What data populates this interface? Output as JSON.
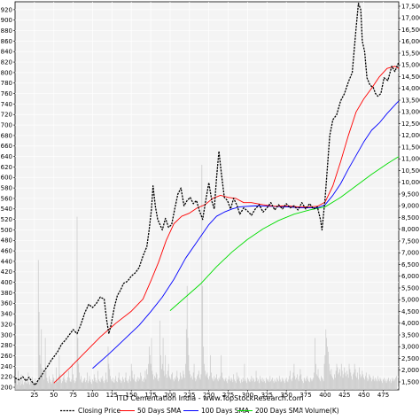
{
  "chart_data": {
    "type": "line",
    "title": "ITD Cementation India - www.TopStockResearch.com",
    "x_ticks": [
      25,
      50,
      75,
      100,
      125,
      150,
      175,
      200,
      225,
      250,
      275,
      300,
      325,
      350,
      375,
      400,
      425,
      450,
      475
    ],
    "x_range": [
      0,
      495
    ],
    "y_left_ticks": [
      200,
      220,
      240,
      260,
      280,
      300,
      320,
      340,
      360,
      380,
      400,
      420,
      440,
      460,
      480,
      500,
      520,
      540,
      560,
      580,
      600,
      620,
      640,
      660,
      680,
      700,
      720,
      740,
      760,
      780,
      800,
      820,
      840,
      860,
      880,
      900,
      920
    ],
    "y_left_range": [
      195,
      935
    ],
    "y_right_ticks": [
      "1,500",
      "2,000",
      "2,500",
      "3,000",
      "3,500",
      "4,000",
      "4,500",
      "5,000",
      "5,500",
      "6,000",
      "6,500",
      "7,000",
      "7,500",
      "8,000",
      "8,500",
      "9,000",
      "9,500",
      "10,000",
      "10,500",
      "11,000",
      "11,500",
      "12,000",
      "12,500",
      "13,000",
      "13,500",
      "14,000",
      "14,500",
      "15,000",
      "15,500",
      "16,000",
      "16,500",
      "17,000",
      "17,500"
    ],
    "grid": true,
    "legend_placement": "bottom",
    "legend": [
      "Closing Price",
      "50 Days SMA",
      "100 Days SMA",
      "200 Days SMA",
      "Volume(K)"
    ],
    "series": [
      {
        "name": "Closing Price",
        "color": "#000000",
        "style": "dashed",
        "points": [
          [
            0,
            218
          ],
          [
            5,
            214
          ],
          [
            10,
            220
          ],
          [
            14,
            212
          ],
          [
            18,
            219
          ],
          [
            22,
            210
          ],
          [
            26,
            204
          ],
          [
            30,
            214
          ],
          [
            34,
            222
          ],
          [
            38,
            232
          ],
          [
            42,
            240
          ],
          [
            46,
            250
          ],
          [
            50,
            258
          ],
          [
            55,
            268
          ],
          [
            60,
            282
          ],
          [
            65,
            290
          ],
          [
            70,
            300
          ],
          [
            75,
            310
          ],
          [
            80,
            302
          ],
          [
            85,
            320
          ],
          [
            90,
            342
          ],
          [
            95,
            358
          ],
          [
            100,
            352
          ],
          [
            105,
            360
          ],
          [
            110,
            372
          ],
          [
            115,
            368
          ],
          [
            118,
            330
          ],
          [
            121,
            302
          ],
          [
            124,
            320
          ],
          [
            128,
            352
          ],
          [
            132,
            375
          ],
          [
            136,
            385
          ],
          [
            140,
            398
          ],
          [
            145,
            402
          ],
          [
            150,
            412
          ],
          [
            155,
            418
          ],
          [
            160,
            428
          ],
          [
            165,
            450
          ],
          [
            170,
            468
          ],
          [
            173,
            500
          ],
          [
            176,
            540
          ],
          [
            178,
            584
          ],
          [
            181,
            545
          ],
          [
            184,
            520
          ],
          [
            187,
            510
          ],
          [
            190,
            500
          ],
          [
            194,
            522
          ],
          [
            198,
            505
          ],
          [
            202,
            510
          ],
          [
            206,
            540
          ],
          [
            210,
            568
          ],
          [
            214,
            580
          ],
          [
            218,
            546
          ],
          [
            222,
            556
          ],
          [
            226,
            562
          ],
          [
            230,
            550
          ],
          [
            234,
            556
          ],
          [
            238,
            536
          ],
          [
            242,
            520
          ],
          [
            246,
            556
          ],
          [
            250,
            590
          ],
          [
            254,
            554
          ],
          [
            257,
            540
          ],
          [
            260,
            600
          ],
          [
            263,
            650
          ],
          [
            266,
            610
          ],
          [
            270,
            562
          ],
          [
            274,
            556
          ],
          [
            278,
            540
          ],
          [
            282,
            560
          ],
          [
            286,
            548
          ],
          [
            290,
            530
          ],
          [
            295,
            542
          ],
          [
            300,
            536
          ],
          [
            305,
            528
          ],
          [
            310,
            540
          ],
          [
            315,
            548
          ],
          [
            320,
            534
          ],
          [
            325,
            542
          ],
          [
            330,
            552
          ],
          [
            335,
            538
          ],
          [
            340,
            548
          ],
          [
            345,
            540
          ],
          [
            350,
            550
          ],
          [
            355,
            542
          ],
          [
            360,
            546
          ],
          [
            365,
            538
          ],
          [
            370,
            552
          ],
          [
            375,
            540
          ],
          [
            380,
            550
          ],
          [
            385,
            540
          ],
          [
            390,
            544
          ],
          [
            394,
            520
          ],
          [
            396,
            500
          ],
          [
            398,
            530
          ],
          [
            400,
            560
          ],
          [
            403,
            620
          ],
          [
            406,
            680
          ],
          [
            410,
            710
          ],
          [
            415,
            720
          ],
          [
            420,
            746
          ],
          [
            425,
            760
          ],
          [
            430,
            782
          ],
          [
            435,
            800
          ],
          [
            440,
            885
          ],
          [
            443,
            932
          ],
          [
            446,
            920
          ],
          [
            448,
            860
          ],
          [
            451,
            840
          ],
          [
            454,
            790
          ],
          [
            458,
            776
          ],
          [
            462,
            772
          ],
          [
            465,
            760
          ],
          [
            468,
            755
          ],
          [
            472,
            760
          ],
          [
            476,
            790
          ],
          [
            481,
            785
          ],
          [
            486,
            812
          ],
          [
            490,
            802
          ],
          [
            495,
            820
          ]
        ]
      },
      {
        "name": "50 Days SMA",
        "color": "#ff0000",
        "style": "solid",
        "points": [
          [
            50,
            208
          ],
          [
            70,
            236
          ],
          [
            90,
            266
          ],
          [
            110,
            296
          ],
          [
            130,
            322
          ],
          [
            150,
            345
          ],
          [
            165,
            368
          ],
          [
            175,
            402
          ],
          [
            185,
            438
          ],
          [
            195,
            480
          ],
          [
            205,
            512
          ],
          [
            215,
            526
          ],
          [
            225,
            532
          ],
          [
            235,
            542
          ],
          [
            245,
            548
          ],
          [
            255,
            560
          ],
          [
            265,
            566
          ],
          [
            275,
            562
          ],
          [
            285,
            560
          ],
          [
            295,
            552
          ],
          [
            305,
            552
          ],
          [
            320,
            548
          ],
          [
            335,
            545
          ],
          [
            350,
            546
          ],
          [
            365,
            544
          ],
          [
            380,
            544
          ],
          [
            390,
            545
          ],
          [
            400,
            553
          ],
          [
            410,
            584
          ],
          [
            420,
            630
          ],
          [
            430,
            680
          ],
          [
            440,
            725
          ],
          [
            450,
            750
          ],
          [
            460,
            770
          ],
          [
            470,
            792
          ],
          [
            480,
            808
          ],
          [
            490,
            812
          ],
          [
            495,
            808
          ]
        ]
      },
      {
        "name": "100 Days SMA",
        "color": "#0000ff",
        "style": "solid",
        "points": [
          [
            100,
            236
          ],
          [
            120,
            262
          ],
          [
            140,
            290
          ],
          [
            160,
            318
          ],
          [
            175,
            344
          ],
          [
            190,
            372
          ],
          [
            205,
            406
          ],
          [
            220,
            446
          ],
          [
            235,
            478
          ],
          [
            250,
            510
          ],
          [
            260,
            526
          ],
          [
            270,
            534
          ],
          [
            280,
            540
          ],
          [
            290,
            544
          ],
          [
            310,
            546
          ],
          [
            330,
            545
          ],
          [
            350,
            544
          ],
          [
            370,
            542
          ],
          [
            390,
            542
          ],
          [
            400,
            548
          ],
          [
            410,
            566
          ],
          [
            420,
            588
          ],
          [
            430,
            616
          ],
          [
            440,
            642
          ],
          [
            450,
            668
          ],
          [
            460,
            690
          ],
          [
            470,
            704
          ],
          [
            480,
            722
          ],
          [
            490,
            738
          ],
          [
            495,
            746
          ]
        ]
      },
      {
        "name": "200 Days SMA",
        "color": "#00dd00",
        "style": "solid",
        "points": [
          [
            200,
            346
          ],
          [
            220,
            372
          ],
          [
            240,
            398
          ],
          [
            260,
            430
          ],
          [
            280,
            458
          ],
          [
            300,
            482
          ],
          [
            320,
            502
          ],
          [
            340,
            518
          ],
          [
            360,
            530
          ],
          [
            380,
            538
          ],
          [
            400,
            544
          ],
          [
            420,
            562
          ],
          [
            440,
            584
          ],
          [
            460,
            606
          ],
          [
            480,
            626
          ],
          [
            495,
            640
          ]
        ]
      }
    ],
    "volume": {
      "name": "Volume(K)",
      "color": "#c8c8c8",
      "step": 1,
      "x_start": 0,
      "values": [
        8,
        10,
        14,
        6,
        22,
        9,
        12,
        5,
        18,
        7,
        11,
        6,
        9,
        14,
        8,
        10,
        7,
        20,
        9,
        6,
        12,
        8,
        15,
        11,
        9,
        7,
        13,
        6,
        8,
        10,
        150,
        90,
        40,
        30,
        70,
        25,
        18,
        12,
        20,
        60,
        22,
        14,
        10,
        8,
        16,
        12,
        9,
        7,
        11,
        18,
        14,
        10,
        8,
        26,
        12,
        9,
        15,
        40,
        18,
        12,
        8,
        10,
        14,
        20,
        12,
        9,
        8,
        11,
        15,
        22,
        14,
        10,
        9,
        12,
        30,
        18,
        11,
        8,
        10,
        14,
        200,
        60,
        30,
        20,
        12,
        16,
        9,
        8,
        10,
        12,
        14,
        9,
        11,
        20,
        8,
        10,
        16,
        12,
        9,
        7,
        12,
        10,
        18,
        14,
        9,
        11,
        8,
        22,
        12,
        10,
        9,
        14,
        12,
        16,
        10,
        8,
        11,
        20,
        12,
        9,
        50,
        30,
        24,
        16,
        12,
        10,
        14,
        9,
        8,
        12,
        16,
        10,
        9,
        14,
        20,
        12,
        11,
        8,
        10,
        15,
        12,
        9,
        14,
        20,
        11,
        10,
        8,
        12,
        16,
        10,
        30,
        22,
        14,
        12,
        18,
        10,
        9,
        12,
        15,
        10,
        14,
        12,
        20,
        16,
        10,
        12,
        9,
        14,
        22,
        12,
        24,
        18,
        30,
        50,
        40,
        30,
        60,
        22,
        18,
        12,
        16,
        14,
        20,
        18,
        12,
        10,
        14,
        80,
        40,
        24,
        30,
        60,
        22,
        16,
        40,
        18,
        14,
        22,
        30,
        16,
        14,
        12,
        18,
        20,
        12,
        10,
        14,
        12,
        16,
        22,
        14,
        10,
        12,
        20,
        16,
        12,
        14,
        22,
        18,
        14,
        30,
        70,
        120,
        60,
        40,
        22,
        18,
        14,
        16,
        12,
        20,
        30,
        14,
        10,
        12,
        16,
        18,
        22,
        14,
        12,
        18,
        260,
        120,
        50,
        30,
        22,
        16,
        18,
        20,
        14,
        12,
        16,
        40,
        20,
        14,
        12,
        10,
        16,
        12,
        14,
        18,
        12,
        10,
        14,
        12,
        16,
        40,
        20,
        14,
        12,
        10,
        12,
        14,
        10,
        8,
        12,
        16,
        12,
        10,
        14,
        12,
        9,
        18,
        12,
        10,
        8,
        20,
        12,
        16,
        14,
        10,
        8,
        12,
        9,
        14,
        10,
        30,
        12,
        10,
        8,
        14,
        12,
        10,
        9,
        12,
        16,
        10,
        14,
        12,
        9,
        10,
        22,
        14,
        10,
        12,
        8,
        16,
        12,
        10,
        14,
        9,
        12,
        10,
        8,
        14,
        12,
        10,
        12,
        9,
        16,
        10,
        12,
        14,
        10,
        8,
        12,
        10,
        9,
        14,
        12,
        10,
        16,
        12,
        9,
        10,
        14,
        12,
        10,
        8,
        12,
        14,
        10,
        9,
        12,
        16,
        22,
        12,
        10,
        14,
        20,
        30,
        16,
        12,
        14,
        18,
        12,
        10,
        16,
        24,
        18,
        12,
        10,
        8,
        14,
        12,
        10,
        14,
        16,
        12,
        10,
        9,
        14,
        12,
        10,
        12,
        14,
        20,
        60,
        30,
        18,
        16,
        24,
        14,
        12,
        10,
        16,
        14,
        12,
        10,
        30,
        40,
        70,
        60,
        50,
        44,
        30,
        22,
        18,
        24,
        16,
        14,
        12,
        18,
        14,
        22,
        30,
        26,
        18,
        20,
        24,
        16,
        30,
        22,
        14,
        18,
        26,
        20,
        16,
        22,
        18,
        14,
        30,
        24,
        20,
        16,
        12,
        18,
        20,
        30,
        24,
        16,
        14,
        20,
        12,
        26,
        18,
        14,
        16,
        22,
        18,
        14,
        12,
        16,
        20,
        14,
        10,
        12,
        18,
        16,
        14,
        10,
        12,
        16,
        12,
        10,
        14,
        12,
        10,
        16,
        12,
        10,
        14,
        12,
        10,
        8,
        12,
        14,
        10,
        12,
        8,
        10,
        12,
        14,
        10,
        12,
        8,
        10,
        14,
        12,
        10,
        12,
        14,
        16
      ]
    }
  }
}
